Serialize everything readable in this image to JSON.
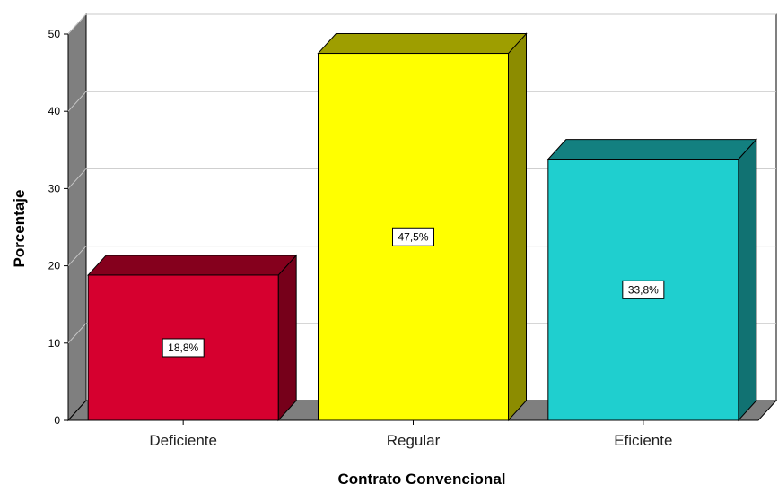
{
  "chart_data": {
    "type": "bar",
    "title": "",
    "xlabel": "Contrato Convencional",
    "ylabel": "Porcentaje",
    "categories": [
      "Deficiente",
      "Regular",
      "Eficiente"
    ],
    "values": [
      18.8,
      47.5,
      33.8
    ],
    "data_labels": [
      "18,8%",
      "47,5%",
      "33,8%"
    ],
    "colors": [
      "#d6002f",
      "#ffff00",
      "#1fcfcf"
    ],
    "ylim": [
      0,
      50
    ],
    "yticks": [
      0,
      10,
      20,
      30,
      40,
      50
    ],
    "grid": true,
    "legend": "none",
    "style": "3d"
  }
}
